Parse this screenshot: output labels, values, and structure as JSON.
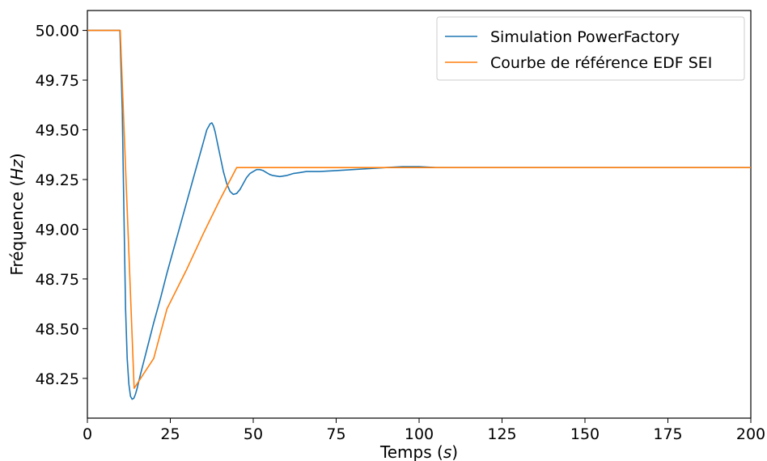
{
  "chart_data": {
    "type": "line",
    "xlabel": "Temps (s)",
    "xlabel_parts": [
      "Temps (",
      "s",
      ")"
    ],
    "ylabel": "Fréquence (Hz)",
    "ylabel_parts": [
      "Fréquence (",
      "Hz",
      ")"
    ],
    "xlim": [
      0,
      200
    ],
    "ylim": [
      48.05,
      50.1
    ],
    "x_ticks": [
      0,
      25,
      50,
      75,
      100,
      125,
      150,
      175,
      200
    ],
    "x_tick_labels": [
      "0",
      "25",
      "50",
      "75",
      "100",
      "125",
      "150",
      "175",
      "200"
    ],
    "y_ticks": [
      48.25,
      48.5,
      48.75,
      49.0,
      49.25,
      49.5,
      49.75,
      50.0
    ],
    "y_tick_labels": [
      "48.25",
      "48.50",
      "48.75",
      "49.00",
      "49.25",
      "49.50",
      "49.75",
      "50.00"
    ],
    "grid": false,
    "legend_position": "top-right",
    "series": [
      {
        "name": "Simulation PowerFactory",
        "color": "#1f77b4",
        "x": [
          0,
          9.8,
          10.5,
          11,
          11.5,
          12,
          12.5,
          13,
          13.5,
          14,
          14.5,
          15,
          16,
          18,
          20,
          22,
          24,
          26,
          28,
          30,
          32,
          34,
          35,
          36,
          37,
          37.5,
          38,
          38.5,
          39,
          40,
          41,
          42,
          43,
          44,
          45,
          46,
          47,
          48,
          49,
          50,
          51,
          52,
          53,
          54,
          55,
          56,
          58,
          60,
          62,
          64,
          66,
          68,
          70,
          75,
          80,
          85,
          90,
          95,
          100,
          105,
          110,
          120,
          140,
          160,
          180,
          200
        ],
        "y": [
          50.0,
          50.0,
          49.6,
          49.1,
          48.6,
          48.35,
          48.22,
          48.16,
          48.145,
          48.15,
          48.17,
          48.2,
          48.27,
          48.4,
          48.53,
          48.65,
          48.78,
          48.9,
          49.02,
          49.14,
          49.26,
          49.38,
          49.44,
          49.5,
          49.53,
          49.535,
          49.52,
          49.49,
          49.45,
          49.37,
          49.29,
          49.23,
          49.19,
          49.175,
          49.18,
          49.2,
          49.23,
          49.26,
          49.28,
          49.29,
          49.3,
          49.3,
          49.295,
          49.285,
          49.275,
          49.27,
          49.265,
          49.27,
          49.28,
          49.285,
          49.29,
          49.29,
          49.29,
          49.295,
          49.3,
          49.305,
          49.31,
          49.315,
          49.315,
          49.31,
          49.31,
          49.31,
          49.31,
          49.31,
          49.31,
          49.31
        ]
      },
      {
        "name": "Courbe de référence EDF SEI",
        "color": "#ff7f0e",
        "x": [
          0,
          9.9,
          14.1,
          20,
          24,
          30,
          35,
          40,
          45,
          50,
          100,
          150,
          200
        ],
        "y": [
          50.0,
          50.0,
          48.2,
          48.35,
          48.6,
          48.8,
          48.98,
          49.15,
          49.31,
          49.31,
          49.31,
          49.31,
          49.31
        ]
      }
    ]
  }
}
